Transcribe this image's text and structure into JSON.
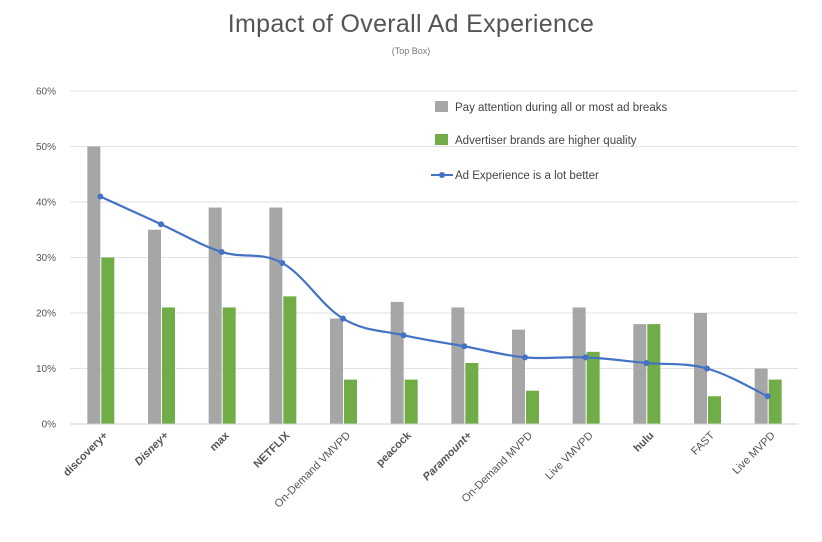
{
  "chart_data": {
    "type": "bar",
    "title": "Impact of Overall Ad Experience",
    "subtitle": "(Top Box)",
    "xlabel": "",
    "ylabel": "",
    "ylim": [
      0,
      60
    ],
    "yticks": [
      "0%",
      "10%",
      "20%",
      "30%",
      "40%",
      "50%",
      "60%"
    ],
    "categories": [
      "discovery+",
      "Disney+",
      "max",
      "NETFLIX",
      "On-Demand VMVPD",
      "peacock",
      "Paramount+",
      "On-Demand MVPD",
      "Live VMVPD",
      "hulu",
      "FAST",
      "Live MVPD"
    ],
    "category_colors": [
      "#3b4a9a",
      "#1d3c9b",
      "#1f3fd6",
      "#e32b2b",
      "#555555",
      "#111111",
      "#2a55b8",
      "#555555",
      "#555555",
      "#1ce783",
      "#555555",
      "#555555"
    ],
    "series": [
      {
        "name": "Pay attention during all or most ad breaks",
        "type": "bar",
        "color": "#a6a6a6",
        "values": [
          50,
          35,
          39,
          39,
          19,
          22,
          21,
          17,
          21,
          18,
          20,
          10
        ]
      },
      {
        "name": "Advertiser brands are higher quality",
        "type": "bar",
        "color": "#70ad47",
        "values": [
          30,
          21,
          21,
          23,
          8,
          8,
          11,
          6,
          13,
          18,
          5,
          8
        ]
      },
      {
        "name": "Ad Experience is a lot better",
        "type": "line",
        "color": "#4472c4",
        "values": [
          41,
          36,
          31,
          29,
          19,
          16,
          14,
          12,
          12,
          11,
          10,
          5
        ]
      }
    ],
    "legend": "top-right",
    "grid": true
  }
}
